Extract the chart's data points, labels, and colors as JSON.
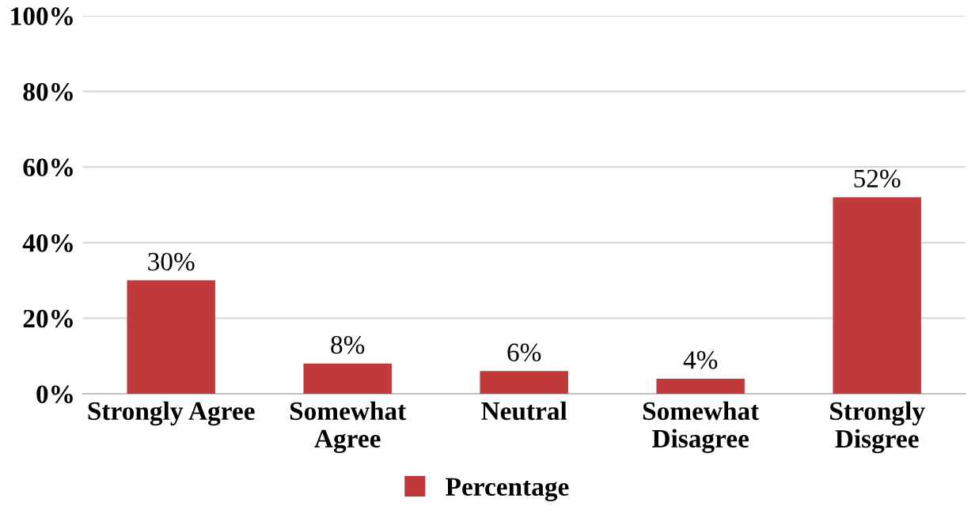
{
  "chart_data": {
    "type": "bar",
    "categories": [
      "Strongly Agree",
      "Somewhat\nAgree",
      "Neutral",
      "Somewhat\nDisagree",
      "Strongly\nDisgree"
    ],
    "series": [
      {
        "name": "Percentage",
        "color": "#c0393b",
        "values": [
          30,
          8,
          6,
          4,
          52
        ],
        "value_labels": [
          "30%",
          "8%",
          "6%",
          "4%",
          "52%"
        ]
      }
    ],
    "ylim": [
      0,
      100
    ],
    "yticks": [
      {
        "value": 0,
        "label": "0%"
      },
      {
        "value": 20,
        "label": "20%"
      },
      {
        "value": 40,
        "label": "40%"
      },
      {
        "value": 60,
        "label": "60%"
      },
      {
        "value": 80,
        "label": "80%"
      },
      {
        "value": 100,
        "label": "100%"
      }
    ],
    "grid": "y",
    "legend": "bottom"
  }
}
